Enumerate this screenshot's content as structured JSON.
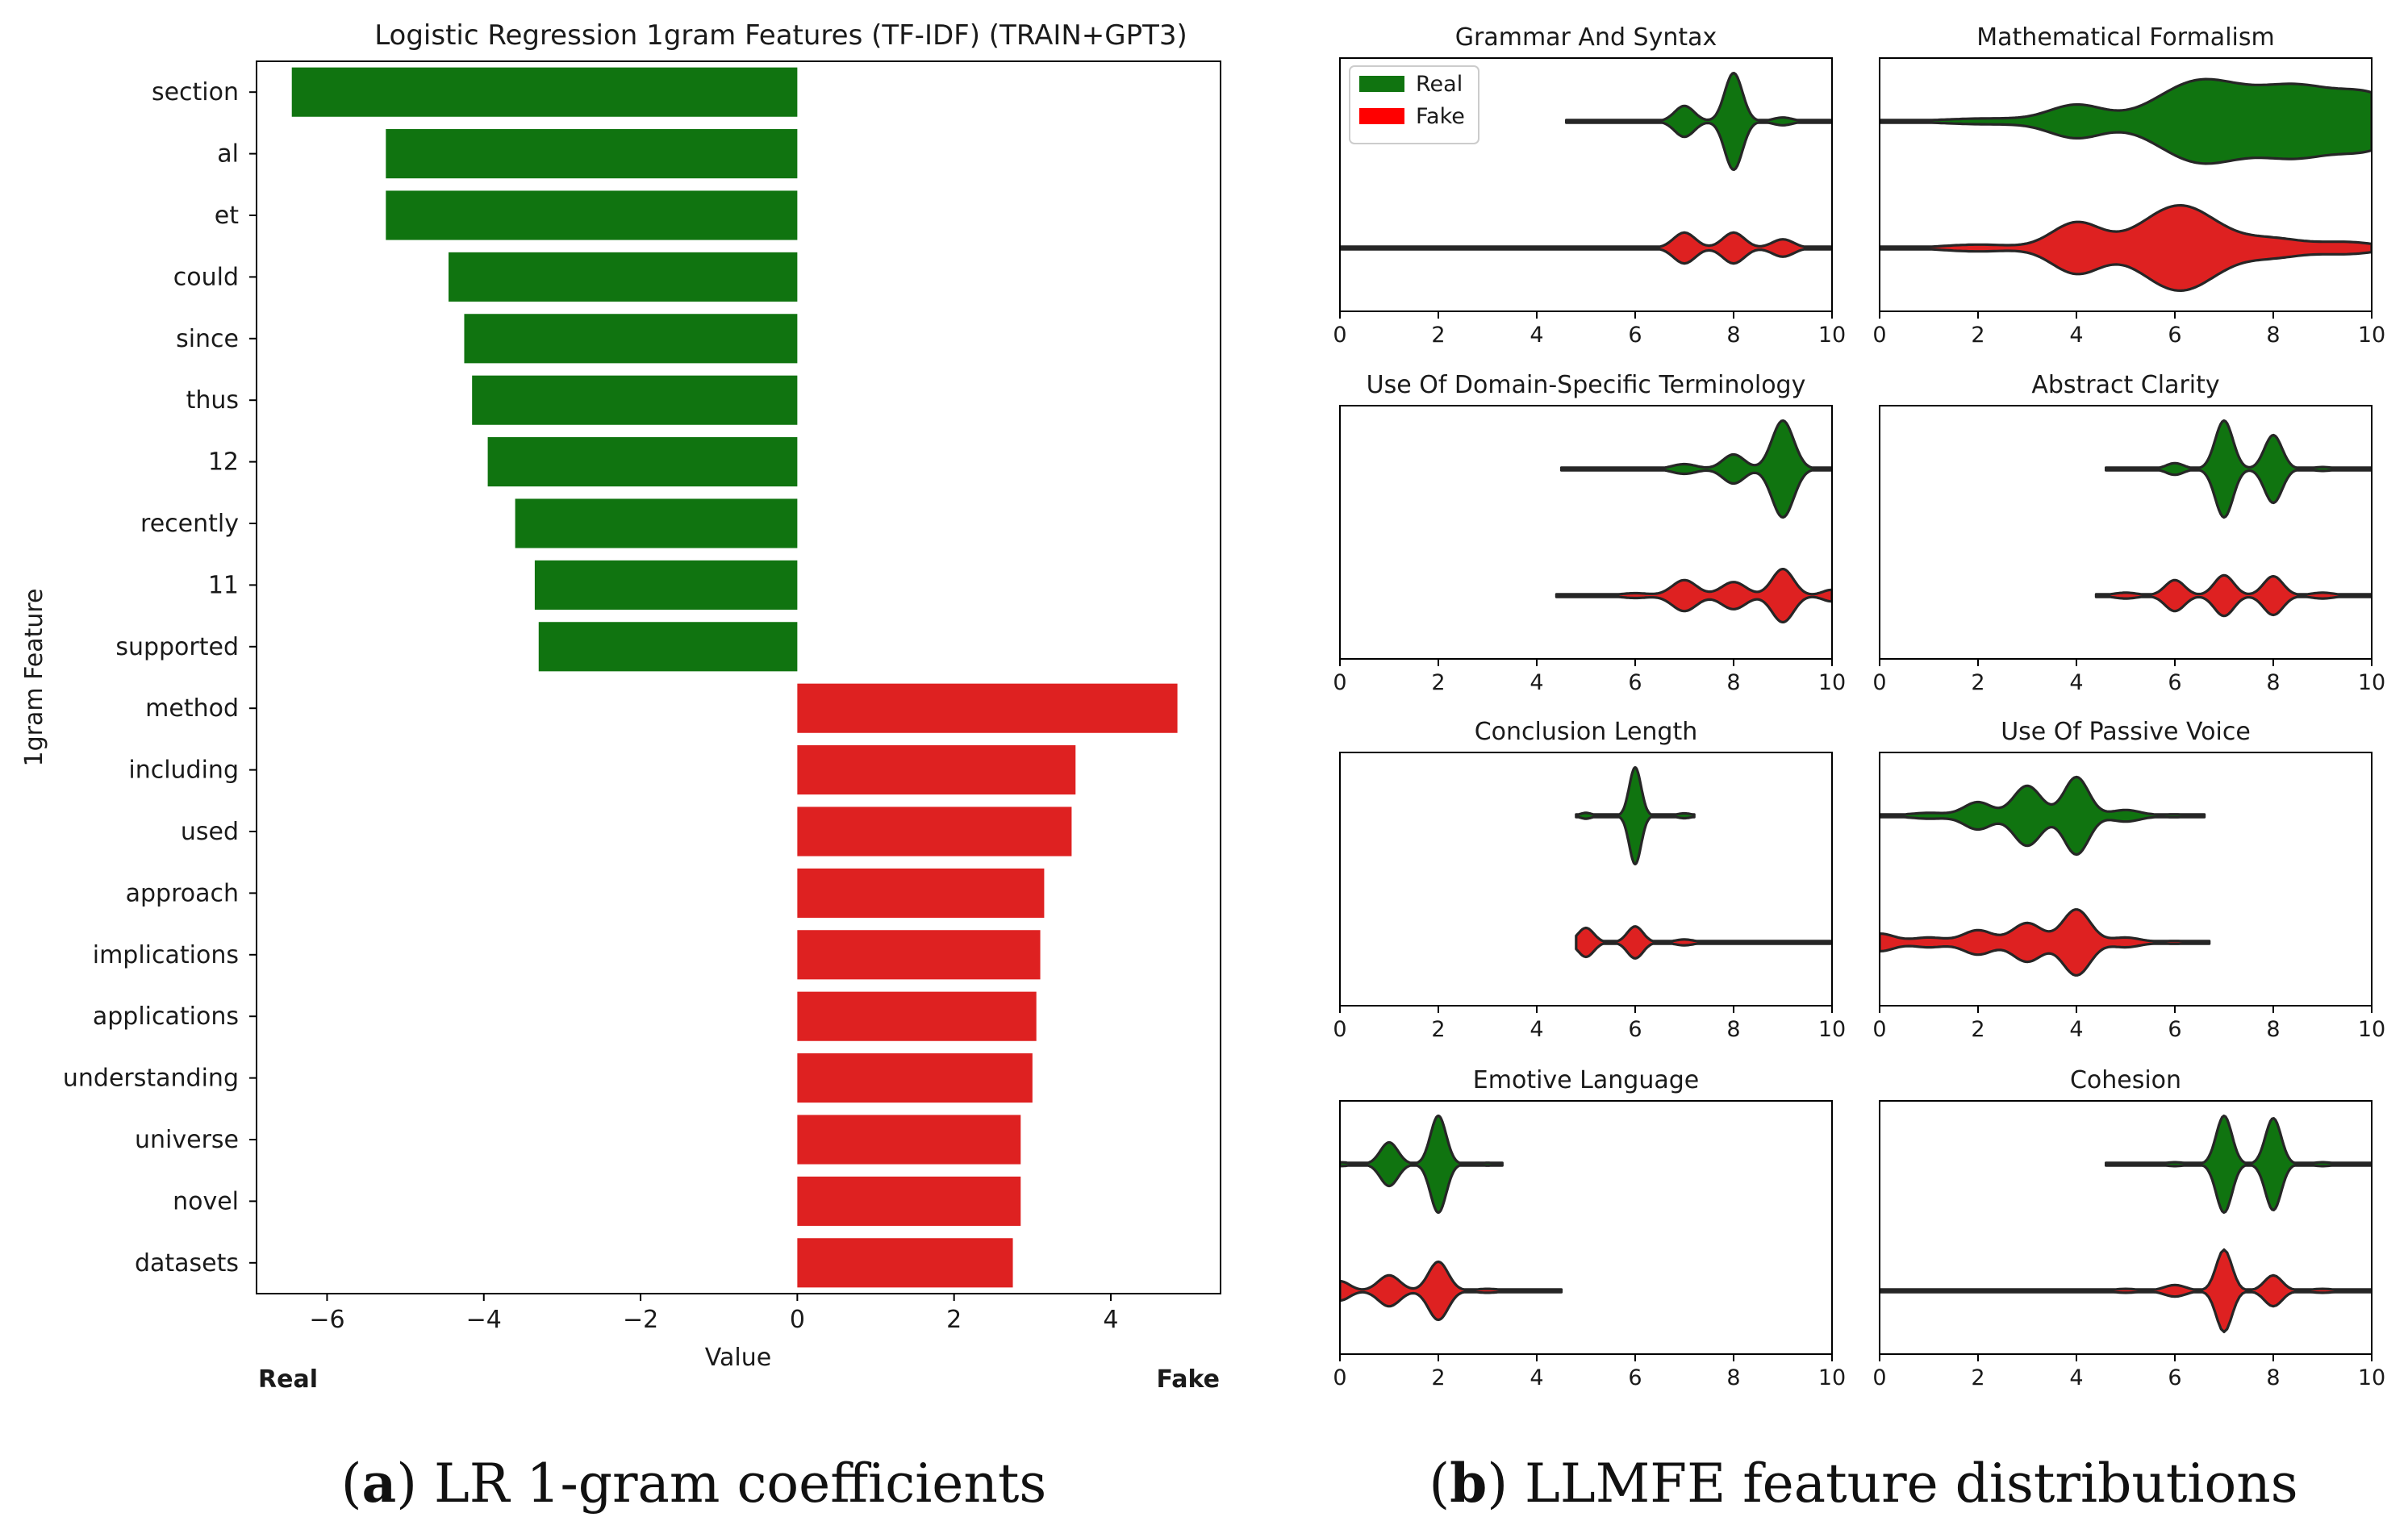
{
  "caption_a": {
    "letter": "a",
    "text": "LR 1-gram coefficients"
  },
  "caption_b": {
    "letter": "b",
    "text": "LLMFE feature distributions"
  },
  "chart_data": [
    {
      "type": "bar",
      "orientation": "horizontal",
      "title": "Logistic Regression 1gram Features (TF-IDF) (TRAIN+GPT3)",
      "xlabel": "Value",
      "ylabel": "1gram Feature",
      "xlim": [
        -6.9,
        5.4
      ],
      "xticks": [
        -6,
        -4,
        -2,
        0,
        2,
        4
      ],
      "xtick_labels": [
        "−6",
        "−4",
        "−2",
        "0",
        "2",
        "4"
      ],
      "left_note": "Real",
      "right_note": "Fake",
      "colors": {
        "negative": "#107410",
        "positive": "#de2121"
      },
      "categories": [
        "section",
        "al",
        "et",
        "could",
        "since",
        "thus",
        "12",
        "recently",
        "11",
        "supported",
        "method",
        "including",
        "used",
        "approach",
        "implications",
        "applications",
        "understanding",
        "universe",
        "novel",
        "datasets"
      ],
      "values": [
        -6.45,
        -5.25,
        -5.25,
        -4.45,
        -4.25,
        -4.15,
        -3.95,
        -3.6,
        -3.35,
        -3.3,
        4.85,
        3.55,
        3.5,
        3.15,
        3.1,
        3.05,
        3.0,
        2.85,
        2.85,
        2.75
      ]
    },
    {
      "type": "violin",
      "xlim": [
        0,
        10
      ],
      "xticks": [
        0,
        2,
        4,
        6,
        8,
        10
      ],
      "legend": {
        "position": "top-left",
        "items": [
          {
            "label": "Real",
            "color": "#107410"
          },
          {
            "label": "Fake",
            "color": "#ff0000"
          }
        ]
      },
      "series_colors": {
        "Real": "#107410",
        "Fake": "#de2121"
      },
      "panels": [
        {
          "title": "Grammar And Syntax",
          "Real": {
            "range": [
              4.6,
              10
            ],
            "modes": [
              [
                7,
                0.32,
                0.2
              ],
              [
                8,
                1.0,
                0.18
              ],
              [
                9,
                0.08,
                0.2
              ]
            ]
          },
          "Fake": {
            "range": [
              0,
              10
            ],
            "modes": [
              [
                7,
                0.32,
                0.22
              ],
              [
                8,
                0.32,
                0.22
              ],
              [
                9,
                0.18,
                0.22
              ]
            ]
          }
        },
        {
          "title": "Mathematical Formalism",
          "Real": {
            "range": [
              0,
              10
            ],
            "modes": [
              [
                2.2,
                0.06,
                0.9
              ],
              [
                4,
                0.33,
                0.55
              ],
              [
                6.5,
                0.82,
                0.85
              ],
              [
                8.5,
                0.7,
                0.85
              ],
              [
                10,
                0.45,
                0.6
              ]
            ]
          },
          "Fake": {
            "range": [
              0,
              10
            ],
            "modes": [
              [
                2,
                0.07,
                0.7
              ],
              [
                4,
                0.52,
                0.5
              ],
              [
                6.1,
                0.88,
                0.75
              ],
              [
                8,
                0.18,
                0.6
              ],
              [
                9.5,
                0.12,
                0.6
              ]
            ]
          }
        },
        {
          "title": "Use Of Domain-Specific Terminology",
          "Real": {
            "range": [
              4.5,
              10
            ],
            "modes": [
              [
                7,
                0.1,
                0.25
              ],
              [
                8,
                0.3,
                0.22
              ],
              [
                9,
                1.0,
                0.22
              ]
            ]
          },
          "Fake": {
            "range": [
              4.4,
              10
            ],
            "modes": [
              [
                6,
                0.05,
                0.3
              ],
              [
                7,
                0.32,
                0.25
              ],
              [
                8,
                0.28,
                0.25
              ],
              [
                9,
                0.55,
                0.22
              ],
              [
                10,
                0.12,
                0.2
              ]
            ]
          }
        },
        {
          "title": "Abstract Clarity",
          "Real": {
            "range": [
              4.6,
              10
            ],
            "modes": [
              [
                6,
                0.12,
                0.18
              ],
              [
                7,
                1.0,
                0.18
              ],
              [
                8,
                0.7,
                0.18
              ],
              [
                9,
                0.04,
                0.2
              ]
            ]
          },
          "Fake": {
            "range": [
              4.4,
              10
            ],
            "modes": [
              [
                5,
                0.06,
                0.25
              ],
              [
                6,
                0.32,
                0.2
              ],
              [
                7,
                0.42,
                0.2
              ],
              [
                8,
                0.4,
                0.2
              ],
              [
                9,
                0.06,
                0.25
              ]
            ]
          }
        },
        {
          "title": "Conclusion Length",
          "Real": {
            "range": [
              4.8,
              7.2
            ],
            "modes": [
              [
                5,
                0.06,
                0.12
              ],
              [
                6,
                1.0,
                0.12
              ],
              [
                7,
                0.05,
                0.15
              ]
            ]
          },
          "Fake": {
            "range": [
              4.8,
              10
            ],
            "modes": [
              [
                5,
                0.3,
                0.16
              ],
              [
                6,
                0.33,
                0.16
              ],
              [
                7,
                0.06,
                0.2
              ]
            ]
          }
        },
        {
          "title": "Use Of Passive Voice",
          "Real": {
            "range": [
              0,
              6.6
            ],
            "modes": [
              [
                1,
                0.06,
                0.4
              ],
              [
                2,
                0.28,
                0.28
              ],
              [
                3,
                0.62,
                0.28
              ],
              [
                4,
                0.8,
                0.25
              ],
              [
                5,
                0.12,
                0.3
              ],
              [
                6,
                0.03,
                0.3
              ]
            ]
          },
          "Fake": {
            "range": [
              0,
              6.7
            ],
            "modes": [
              [
                0,
                0.18,
                0.3
              ],
              [
                1,
                0.1,
                0.35
              ],
              [
                2,
                0.25,
                0.3
              ],
              [
                3,
                0.4,
                0.3
              ],
              [
                4,
                0.68,
                0.28
              ],
              [
                5,
                0.1,
                0.3
              ],
              [
                6,
                0.03,
                0.3
              ]
            ]
          }
        },
        {
          "title": "Emotive Language",
          "Real": {
            "range": [
              0,
              3.3
            ],
            "modes": [
              [
                0,
                0.04,
                0.2
              ],
              [
                1,
                0.45,
                0.18
              ],
              [
                2,
                1.0,
                0.16
              ],
              [
                3,
                0.03,
                0.2
              ]
            ]
          },
          "Fake": {
            "range": [
              0,
              4.5
            ],
            "modes": [
              [
                0,
                0.2,
                0.2
              ],
              [
                1,
                0.32,
                0.22
              ],
              [
                2,
                0.6,
                0.2
              ],
              [
                3,
                0.04,
                0.25
              ],
              [
                4,
                0.02,
                0.3
              ]
            ]
          }
        },
        {
          "title": "Cohesion",
          "Real": {
            "range": [
              4.6,
              10
            ],
            "modes": [
              [
                6,
                0.04,
                0.2
              ],
              [
                7,
                1.0,
                0.16
              ],
              [
                8,
                0.95,
                0.16
              ],
              [
                9,
                0.04,
                0.2
              ]
            ]
          },
          "Fake": {
            "range": [
              0,
              10
            ],
            "modes": [
              [
                5,
                0.04,
                0.25
              ],
              [
                6,
                0.12,
                0.22
              ],
              [
                7,
                0.85,
                0.16
              ],
              [
                8,
                0.32,
                0.18
              ],
              [
                9,
                0.04,
                0.25
              ]
            ]
          }
        }
      ]
    }
  ]
}
